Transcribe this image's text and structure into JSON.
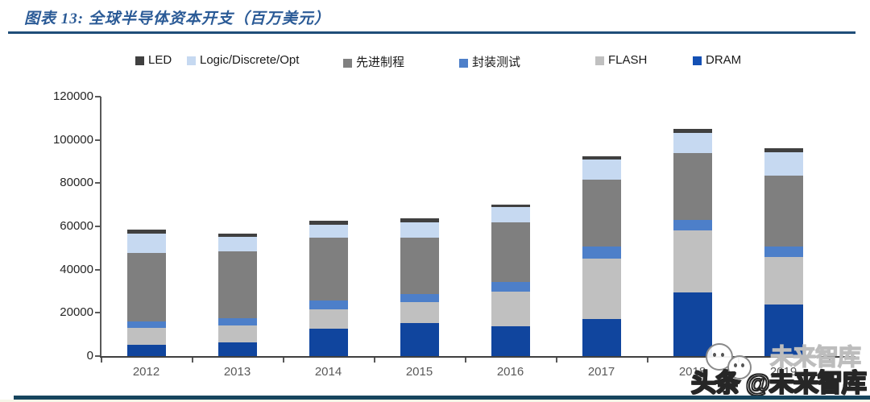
{
  "header": {
    "title": "图表 13:  全球半导体资本开支（百万美元）"
  },
  "legend_items": [
    {
      "label": "LED",
      "color": "#404040"
    },
    {
      "label": "Logic/Discrete/Opt",
      "color": "#c6d9f1"
    },
    {
      "label": "先进制程",
      "color": "#808080"
    },
    {
      "label": "封装测试",
      "color": "#4d7fc9"
    },
    {
      "label": "FLASH",
      "color": "#c0c0c0"
    },
    {
      "label": "DRAM",
      "color": "#1450b4"
    }
  ],
  "chart_data": {
    "type": "bar",
    "stacked": true,
    "title": "全球半导体资本开支（百万美元）",
    "categories": [
      "2012",
      "2013",
      "2014",
      "2015",
      "2016",
      "2017",
      "2018",
      "2019"
    ],
    "series": [
      {
        "name": "DRAM",
        "color": "#10459e",
        "values": [
          5200,
          6300,
          12800,
          15400,
          13700,
          17200,
          29500,
          24000
        ]
      },
      {
        "name": "FLASH",
        "color": "#c0c0c0",
        "values": [
          7700,
          8000,
          8800,
          9700,
          16300,
          28000,
          28600,
          22000
        ]
      },
      {
        "name": "封装测试",
        "color": "#4d7fc9",
        "values": [
          3200,
          3300,
          4300,
          3700,
          4400,
          5500,
          5000,
          4600
        ]
      },
      {
        "name": "先进制程",
        "color": "#7f7f7f",
        "values": [
          31500,
          31000,
          28700,
          26100,
          27600,
          30800,
          30700,
          32700
        ]
      },
      {
        "name": "Logic/Discrete/Opt",
        "color": "#c6d9f1",
        "values": [
          9100,
          6400,
          6200,
          7100,
          6800,
          9600,
          9600,
          10800
        ]
      },
      {
        "name": "LED",
        "color": "#404040",
        "values": [
          1800,
          1500,
          1800,
          1800,
          1200,
          1400,
          1600,
          1900
        ]
      }
    ],
    "totals": [
      58500,
      56500,
      62600,
      63800,
      70000,
      92500,
      105000,
      96000
    ],
    "xlabel": "",
    "ylabel": "",
    "ylim": [
      0,
      120000
    ],
    "y_ticks": [
      0,
      20000,
      40000,
      60000,
      80000,
      100000,
      120000
    ],
    "grid": false,
    "legend_position": "top"
  },
  "watermark": {
    "faint_text": "未来智库",
    "main_text": "头条 @未来智库"
  },
  "accent_colors": {
    "title_blue": "#2a5a96",
    "title_rule": "#1f4e79",
    "footer_rule": "#17455e"
  }
}
